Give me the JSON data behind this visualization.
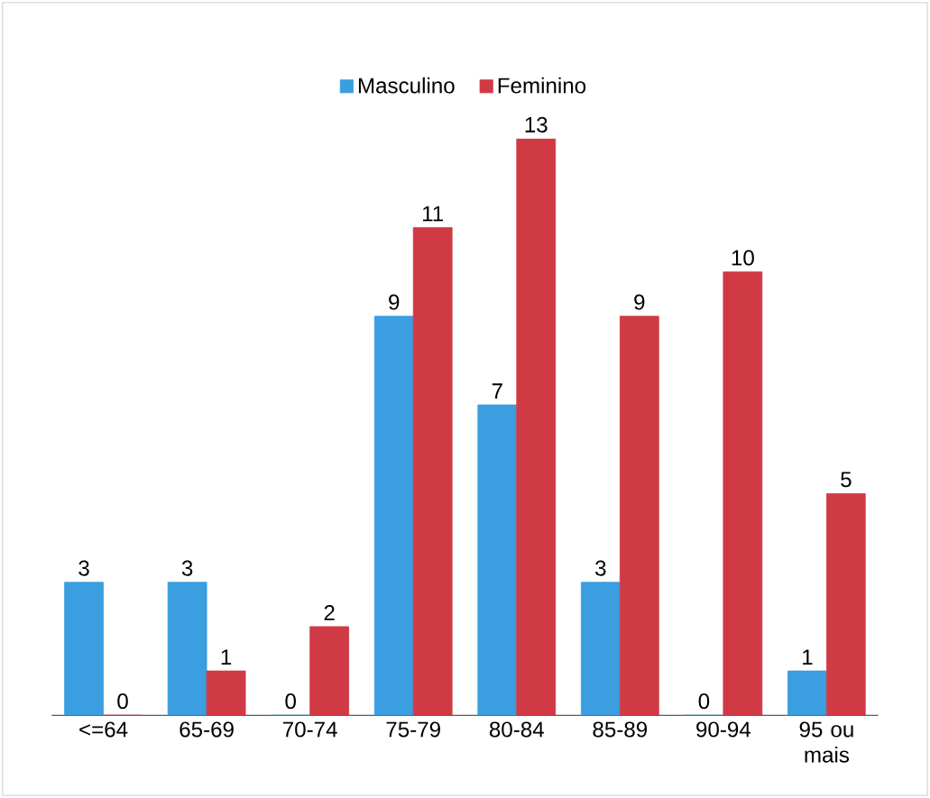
{
  "chart_data": {
    "type": "bar",
    "categories": [
      "<=64",
      "65-69",
      "70-74",
      "75-79",
      "80-84",
      "85-89",
      "90-94",
      "95 ou mais"
    ],
    "series": [
      {
        "name": "Masculino",
        "color": "#3a9ee0",
        "values": [
          3,
          3,
          0,
          9,
          7,
          3,
          0,
          1
        ]
      },
      {
        "name": "Feminino",
        "color": "#d03a45",
        "values": [
          0,
          1,
          2,
          11,
          13,
          9,
          10,
          5
        ]
      }
    ],
    "data_labels": true,
    "legend": "top"
  }
}
